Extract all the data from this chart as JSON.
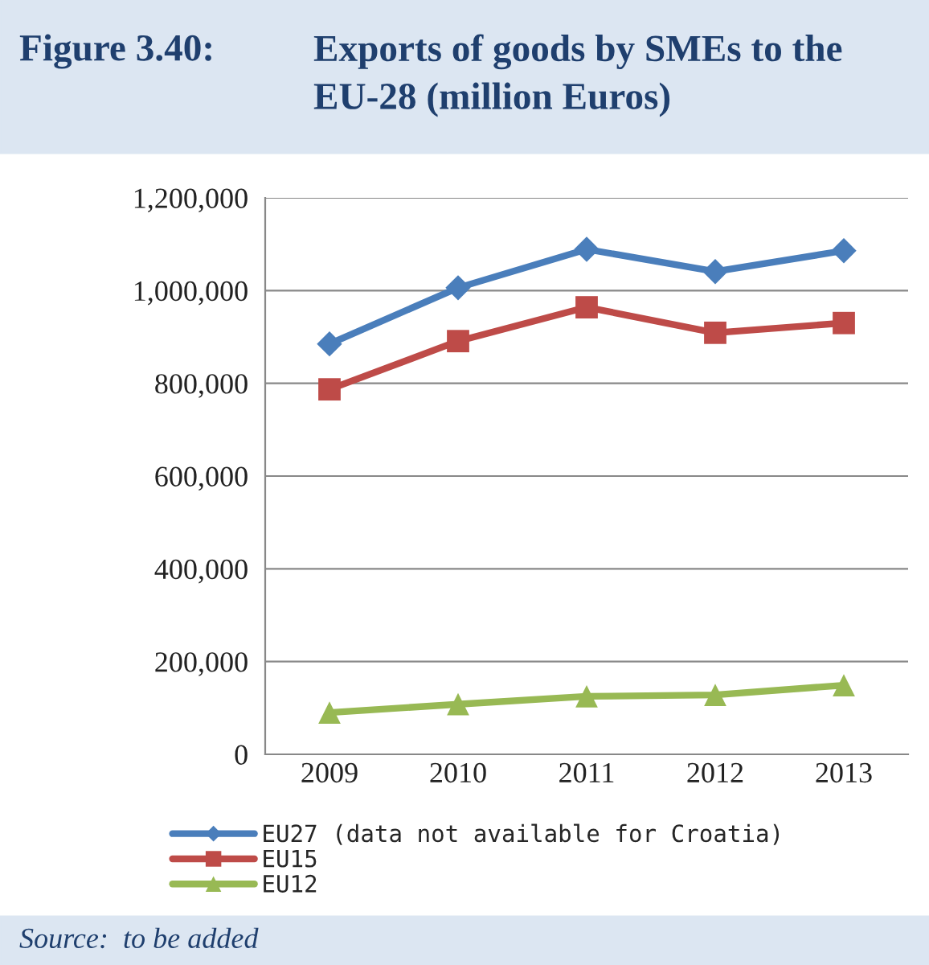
{
  "chart_data": {
    "type": "line",
    "title": "Exports of goods by SMEs to the EU-28 (million Euros)",
    "annotations": [
      "Figure 3.40:",
      "Source:  to be added"
    ],
    "categories": [
      "2009",
      "2010",
      "2011",
      "2012",
      "2013"
    ],
    "series": [
      {
        "name": "EU27 (data not available for Croatia)",
        "color": "#4a7ebb",
        "marker": "diamond",
        "values": [
          885000,
          1006000,
          1089000,
          1041000,
          1086000
        ]
      },
      {
        "name": "EU15",
        "color": "#be4b48",
        "marker": "square",
        "values": [
          787000,
          891000,
          964000,
          909000,
          930000
        ]
      },
      {
        "name": "EU12",
        "color": "#98b954",
        "marker": "triangle",
        "values": [
          90000,
          108000,
          125000,
          128000,
          149000
        ]
      }
    ],
    "ylim": [
      0,
      1200000
    ],
    "yticks": [
      0,
      {
        "value": 200000,
        "label": "200,000"
      },
      {
        "value": 400000,
        "label": "400,000"
      },
      {
        "value": 600000,
        "label": "600,000"
      },
      {
        "value": 800000,
        "label": "800,000"
      },
      {
        "value": 1000000,
        "label": "1,000,000"
      },
      {
        "value": 1200000,
        "label": "1,200,000"
      }
    ],
    "grid": "y",
    "legend": "bottom",
    "line_style": "solid"
  }
}
